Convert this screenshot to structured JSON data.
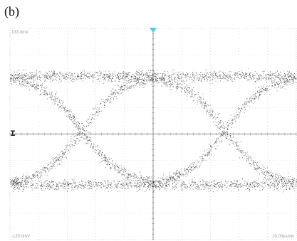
{
  "panel_label": "(b)",
  "chart_data": {
    "type": "scatter",
    "subtype": "eye-diagram",
    "title": "",
    "xlabel": "",
    "ylabel": "",
    "grid": true,
    "grid_divisions": [
      10,
      8
    ],
    "ylim": [
      -1,
      1
    ],
    "xlim": [
      -1,
      1
    ],
    "screen_labels": {
      "top_left": "133.0mV",
      "bottom_left": "-120.0mV",
      "bottom_right": "20.00ps/div"
    },
    "eye": {
      "crossing_times": [
        -0.5,
        0.5
      ],
      "high_level": 0.55,
      "low_level": -0.48,
      "crossing_level": 0.0,
      "noise_level": 0.05
    },
    "colors": {
      "trace": "#1e1e1e",
      "grid": "#c8c8c8",
      "axis": "#8a8a8a",
      "frame": "#b0b0b0",
      "trigger_marker": "#4fc9e8",
      "ground_marker": "#222222"
    }
  }
}
